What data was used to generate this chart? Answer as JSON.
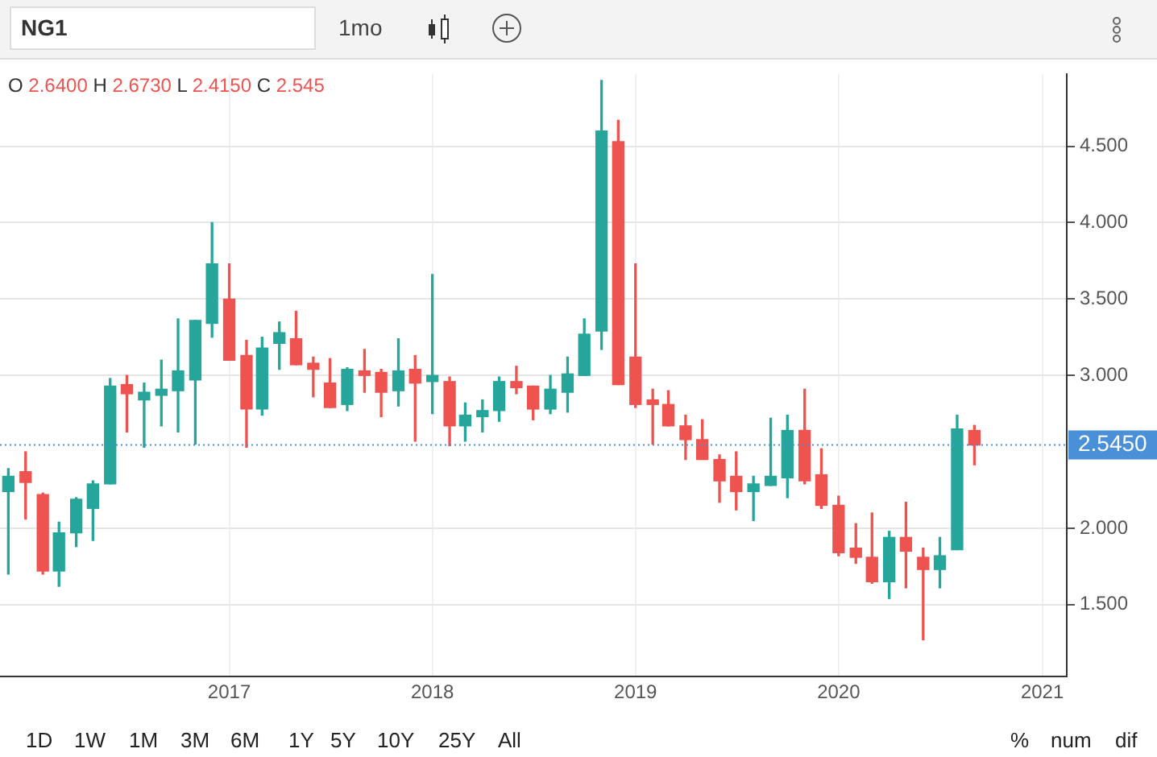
{
  "chart_data": {
    "type": "candlestick",
    "title": "NG1",
    "annotations": [
      "O 2.6400 H 2.6730 L 2.4150 C 2.545",
      "1mo",
      "1D",
      "1W",
      "1M",
      "3M",
      "6M",
      "1Y",
      "5Y",
      "10Y",
      "25Y",
      "All",
      "%",
      "num",
      "dif"
    ],
    "x": [
      "2015-12",
      "2016-01",
      "2016-02",
      "2016-03",
      "2016-04",
      "2016-05",
      "2016-06",
      "2016-07",
      "2016-08",
      "2016-09",
      "2016-10",
      "2016-11",
      "2016-12",
      "2017-01",
      "2017-02",
      "2017-03",
      "2017-04",
      "2017-05",
      "2017-06",
      "2017-07",
      "2017-08",
      "2017-09",
      "2017-10",
      "2017-11",
      "2017-12",
      "2018-01",
      "2018-02",
      "2018-03",
      "2018-04",
      "2018-05",
      "2018-06",
      "2018-07",
      "2018-08",
      "2018-09",
      "2018-10",
      "2018-11",
      "2018-12",
      "2019-01",
      "2019-02",
      "2019-03",
      "2019-04",
      "2019-05",
      "2019-06",
      "2019-07",
      "2019-08",
      "2019-09",
      "2019-10",
      "2019-11",
      "2019-12",
      "2020-01",
      "2020-02",
      "2020-03",
      "2020-04",
      "2020-05",
      "2020-06",
      "2020-07",
      "2020-08",
      "2020-09"
    ],
    "ohlc": [
      [
        2.24,
        2.39,
        1.7,
        2.34
      ],
      [
        2.37,
        2.5,
        2.06,
        2.3
      ],
      [
        2.22,
        2.23,
        1.7,
        1.72
      ],
      [
        1.72,
        2.04,
        1.62,
        1.97
      ],
      [
        1.97,
        2.2,
        1.88,
        2.19
      ],
      [
        2.13,
        2.31,
        1.92,
        2.29
      ],
      [
        2.29,
        2.98,
        2.29,
        2.93
      ],
      [
        2.94,
        3.0,
        2.63,
        2.88
      ],
      [
        2.84,
        2.95,
        2.53,
        2.89
      ],
      [
        2.87,
        3.1,
        2.67,
        2.91
      ],
      [
        2.9,
        3.37,
        2.63,
        3.03
      ],
      [
        2.97,
        3.36,
        2.55,
        3.36
      ],
      [
        3.34,
        4.0,
        3.25,
        3.73
      ],
      [
        3.5,
        3.73,
        3.1,
        3.1
      ],
      [
        3.13,
        3.23,
        2.53,
        2.78
      ],
      [
        2.78,
        3.25,
        2.74,
        3.18
      ],
      [
        3.21,
        3.35,
        3.04,
        3.28
      ],
      [
        3.24,
        3.42,
        3.07,
        3.07
      ],
      [
        3.08,
        3.12,
        2.86,
        3.04
      ],
      [
        2.95,
        3.11,
        2.79,
        2.79
      ],
      [
        2.81,
        3.05,
        2.77,
        3.04
      ],
      [
        3.03,
        3.17,
        2.89,
        3.0
      ],
      [
        3.02,
        3.04,
        2.73,
        2.89
      ],
      [
        2.9,
        3.24,
        2.8,
        3.03
      ],
      [
        3.04,
        3.13,
        2.57,
        2.95
      ],
      [
        2.96,
        3.66,
        2.75,
        3.0
      ],
      [
        2.96,
        2.99,
        2.54,
        2.67
      ],
      [
        2.67,
        2.82,
        2.57,
        2.74
      ],
      [
        2.73,
        2.84,
        2.63,
        2.77
      ],
      [
        2.77,
        2.99,
        2.7,
        2.96
      ],
      [
        2.96,
        3.06,
        2.88,
        2.92
      ],
      [
        2.93,
        2.93,
        2.71,
        2.78
      ],
      [
        2.78,
        3.0,
        2.75,
        2.91
      ],
      [
        2.89,
        3.12,
        2.76,
        3.01
      ],
      [
        3.0,
        3.37,
        3.0,
        3.27
      ],
      [
        3.29,
        4.93,
        3.17,
        4.6
      ],
      [
        4.53,
        4.67,
        2.94,
        2.94
      ],
      [
        3.12,
        3.73,
        2.79,
        2.81
      ],
      [
        2.84,
        2.91,
        2.55,
        2.81
      ],
      [
        2.81,
        2.9,
        2.67,
        2.67
      ],
      [
        2.67,
        2.74,
        2.45,
        2.58
      ],
      [
        2.58,
        2.71,
        2.45,
        2.45
      ],
      [
        2.45,
        2.48,
        2.17,
        2.31
      ],
      [
        2.34,
        2.5,
        2.12,
        2.24
      ],
      [
        2.24,
        2.34,
        2.05,
        2.29
      ],
      [
        2.28,
        2.72,
        2.28,
        2.34
      ],
      [
        2.33,
        2.74,
        2.2,
        2.64
      ],
      [
        2.64,
        2.91,
        2.29,
        2.31
      ],
      [
        2.35,
        2.52,
        2.13,
        2.15
      ],
      [
        2.15,
        2.21,
        1.82,
        1.84
      ],
      [
        1.87,
        2.03,
        1.77,
        1.81
      ],
      [
        1.81,
        2.1,
        1.64,
        1.65
      ],
      [
        1.65,
        1.98,
        1.54,
        1.94
      ],
      [
        1.94,
        2.17,
        1.61,
        1.85
      ],
      [
        1.81,
        1.87,
        1.27,
        1.73
      ],
      [
        1.73,
        1.94,
        1.61,
        1.82
      ],
      [
        1.86,
        2.74,
        1.86,
        2.65
      ],
      [
        2.64,
        2.673,
        2.415,
        2.545
      ]
    ],
    "colors": [
      "#26a69a",
      "#ef5350",
      "#ef5350",
      "#26a69a",
      "#26a69a",
      "#26a69a",
      "#26a69a",
      "#ef5350",
      "#26a69a",
      "#26a69a",
      "#26a69a",
      "#26a69a",
      "#26a69a",
      "#ef5350",
      "#ef5350",
      "#26a69a",
      "#26a69a",
      "#ef5350",
      "#ef5350",
      "#ef5350",
      "#26a69a",
      "#ef5350",
      "#ef5350",
      "#26a69a",
      "#ef5350",
      "#26a69a",
      "#ef5350",
      "#26a69a",
      "#26a69a",
      "#26a69a",
      "#ef5350",
      "#ef5350",
      "#26a69a",
      "#26a69a",
      "#26a69a",
      "#26a69a",
      "#ef5350",
      "#ef5350",
      "#ef5350",
      "#ef5350",
      "#ef5350",
      "#ef5350",
      "#ef5350",
      "#ef5350",
      "#26a69a",
      "#26a69a",
      "#26a69a",
      "#ef5350",
      "#ef5350",
      "#ef5350",
      "#ef5350",
      "#ef5350",
      "#26a69a",
      "#ef5350",
      "#ef5350",
      "#26a69a",
      "#26a69a",
      "#ef5350"
    ],
    "xlim": [
      "2015-11-16",
      "2021-02-14"
    ],
    "xticks": [
      "2017",
      "2018",
      "2019",
      "2020",
      "2021"
    ],
    "ylim": [
      1.03,
      4.97
    ],
    "yticks": [
      {
        "value": 1.5,
        "label": "1.500"
      },
      {
        "value": 2,
        "label": "2.000"
      },
      {
        "value": 3,
        "label": "3.000"
      },
      {
        "value": 3.5,
        "label": "3.500"
      },
      {
        "value": 4,
        "label": "4.000"
      },
      {
        "value": 4.5,
        "label": "4.500"
      }
    ],
    "ref_lines": [
      {
        "axis": "y",
        "value": 2.545,
        "label": "2.5450",
        "color": "#4a90d9",
        "line_style": "dotted"
      }
    ],
    "grid": true,
    "legend": false
  }
}
